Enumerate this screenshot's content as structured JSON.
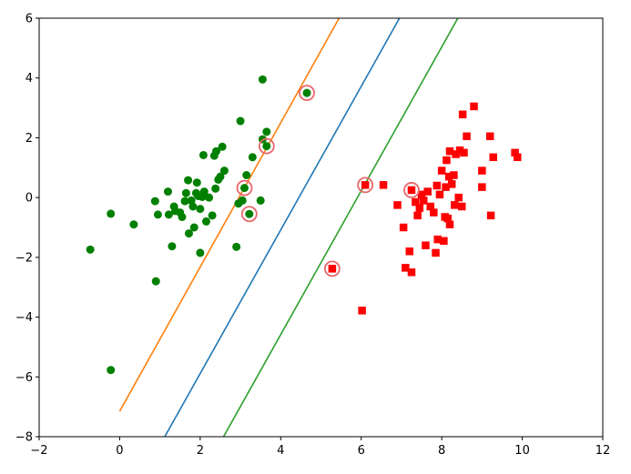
{
  "chart_data": {
    "type": "scatter",
    "title": "",
    "xlabel": "",
    "ylabel": "",
    "xlim": [
      -2,
      12
    ],
    "ylim": [
      -8,
      6
    ],
    "xticks": [
      -2,
      0,
      2,
      4,
      6,
      8,
      10,
      12
    ],
    "yticks": [
      -8,
      -6,
      -4,
      -2,
      0,
      2,
      4,
      6
    ],
    "xtick_labels": [
      "−2",
      "0",
      "2",
      "4",
      "6",
      "8",
      "10",
      "12"
    ],
    "ytick_labels": [
      "−8",
      "−6",
      "−4",
      "−2",
      "0",
      "2",
      "4",
      "6"
    ],
    "grid": false,
    "series": [
      {
        "marker": "circle",
        "color": "#008000",
        "points": [
          [
            -0.73,
            -1.74
          ],
          [
            -0.22,
            -0.54
          ],
          [
            -0.22,
            -5.77
          ],
          [
            0.35,
            -0.9
          ],
          [
            0.88,
            -0.12
          ],
          [
            0.9,
            -2.8
          ],
          [
            0.95,
            -0.57
          ],
          [
            1.2,
            0.2
          ],
          [
            1.22,
            -0.57
          ],
          [
            1.3,
            -1.63
          ],
          [
            1.35,
            -0.3
          ],
          [
            1.38,
            -0.45
          ],
          [
            1.5,
            -0.5
          ],
          [
            1.55,
            -0.65
          ],
          [
            1.62,
            -0.12
          ],
          [
            1.65,
            0.15
          ],
          [
            1.7,
            0.58
          ],
          [
            1.72,
            -1.2
          ],
          [
            1.78,
            -0.1
          ],
          [
            1.82,
            -0.3
          ],
          [
            1.85,
            -1.0
          ],
          [
            1.9,
            0.15
          ],
          [
            1.92,
            0.5
          ],
          [
            1.95,
            0.05
          ],
          [
            2.0,
            -0.38
          ],
          [
            2.0,
            -1.85
          ],
          [
            2.05,
            0.02
          ],
          [
            2.08,
            1.42
          ],
          [
            2.1,
            0.2
          ],
          [
            2.15,
            -0.8
          ],
          [
            2.22,
            0.0
          ],
          [
            2.3,
            -0.6
          ],
          [
            2.35,
            1.4
          ],
          [
            2.38,
            0.3
          ],
          [
            2.4,
            1.55
          ],
          [
            2.45,
            0.6
          ],
          [
            2.5,
            0.7
          ],
          [
            2.55,
            1.7
          ],
          [
            2.6,
            0.9
          ],
          [
            2.9,
            -1.65
          ],
          [
            2.95,
            -0.2
          ],
          [
            3.0,
            2.56
          ],
          [
            3.05,
            -0.1
          ],
          [
            3.1,
            0.32
          ],
          [
            3.15,
            0.75
          ],
          [
            3.22,
            -0.55
          ],
          [
            3.3,
            1.35
          ],
          [
            3.5,
            -0.1
          ],
          [
            3.55,
            3.95
          ],
          [
            3.55,
            1.95
          ],
          [
            3.65,
            2.2
          ],
          [
            3.65,
            1.72
          ],
          [
            4.65,
            3.5
          ]
        ]
      },
      {
        "marker": "square",
        "color": "#ff0000",
        "points": [
          [
            5.28,
            -2.38
          ],
          [
            6.02,
            -3.78
          ],
          [
            6.1,
            0.42
          ],
          [
            6.55,
            0.42
          ],
          [
            6.9,
            -0.25
          ],
          [
            7.05,
            -1.0
          ],
          [
            7.1,
            -2.35
          ],
          [
            7.2,
            -1.8
          ],
          [
            7.25,
            -2.5
          ],
          [
            7.25,
            0.25
          ],
          [
            7.35,
            -0.15
          ],
          [
            7.4,
            -0.6
          ],
          [
            7.45,
            -0.35
          ],
          [
            7.5,
            0.1
          ],
          [
            7.55,
            -0.1
          ],
          [
            7.6,
            -1.6
          ],
          [
            7.65,
            0.2
          ],
          [
            7.72,
            -0.3
          ],
          [
            7.8,
            -0.5
          ],
          [
            7.85,
            -1.85
          ],
          [
            7.88,
            0.4
          ],
          [
            7.9,
            -1.4
          ],
          [
            7.95,
            0.1
          ],
          [
            8.0,
            0.9
          ],
          [
            8.05,
            -1.45
          ],
          [
            8.08,
            -0.65
          ],
          [
            8.1,
            0.35
          ],
          [
            8.12,
            1.25
          ],
          [
            8.15,
            -0.7
          ],
          [
            8.18,
            0.7
          ],
          [
            8.2,
            -0.9
          ],
          [
            8.2,
            1.55
          ],
          [
            8.25,
            0.45
          ],
          [
            8.3,
            0.75
          ],
          [
            8.32,
            -0.25
          ],
          [
            8.35,
            1.45
          ],
          [
            8.42,
            0.0
          ],
          [
            8.45,
            1.58
          ],
          [
            8.5,
            -0.3
          ],
          [
            8.52,
            2.78
          ],
          [
            8.55,
            1.5
          ],
          [
            8.62,
            2.05
          ],
          [
            8.8,
            3.05
          ],
          [
            9.0,
            0.9
          ],
          [
            9.0,
            0.35
          ],
          [
            9.2,
            2.05
          ],
          [
            9.22,
            -0.6
          ],
          [
            9.28,
            1.35
          ],
          [
            9.82,
            1.5
          ],
          [
            9.88,
            1.35
          ]
        ]
      }
    ],
    "support_vectors": {
      "marker": "ring",
      "color": "#e8666a",
      "points": [
        [
          4.65,
          3.5
        ],
        [
          3.65,
          1.72
        ],
        [
          3.1,
          0.32
        ],
        [
          3.22,
          -0.55
        ],
        [
          6.1,
          0.42
        ],
        [
          7.25,
          0.25
        ],
        [
          5.28,
          -2.38
        ]
      ]
    },
    "lines": [
      {
        "color": "#ff7f0e",
        "points": [
          [
            0.0,
            -7.15
          ],
          [
            5.45,
            6.0
          ]
        ]
      },
      {
        "color": "#1f77b4",
        "points": [
          [
            1.12,
            -8.0
          ],
          [
            6.95,
            6.0
          ]
        ]
      },
      {
        "color": "#2ca02c",
        "points": [
          [
            2.58,
            -8.0
          ],
          [
            8.4,
            6.0
          ]
        ]
      }
    ]
  }
}
